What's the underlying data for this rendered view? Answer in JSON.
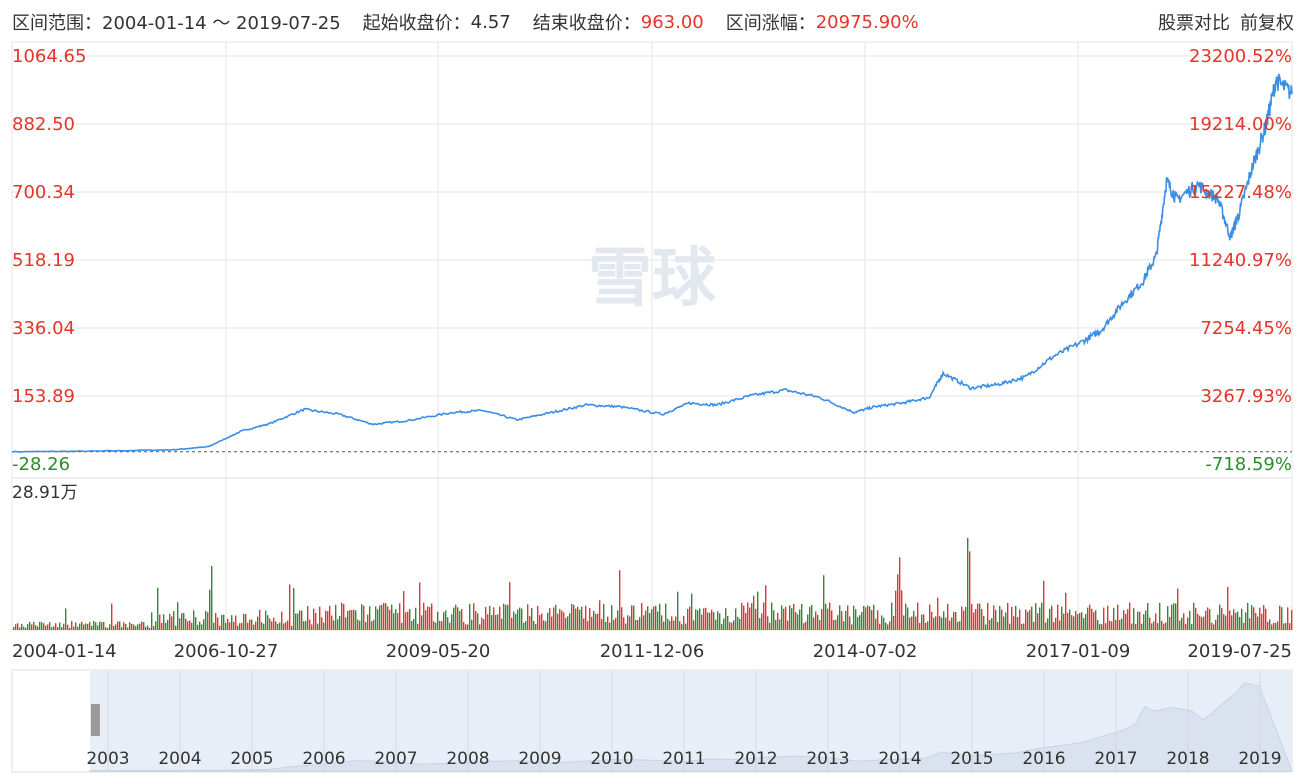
{
  "header": {
    "range_label": "区间范围：",
    "range_value": "2004-01-14 ～ 2019-07-25",
    "start_label": "起始收盘价：",
    "start_value": "4.57",
    "end_label": "结束收盘价：",
    "end_value": "963.00",
    "change_label": "区间涨幅：",
    "change_value": "20975.90%",
    "compare_button": "股票对比",
    "adjust_button": "前复权"
  },
  "watermark": "雪球",
  "colors": {
    "line": "#3a8ee6",
    "up": "#e5342a",
    "down": "#2e8b2e",
    "grid": "#e6e6e6"
  },
  "chart_data": [
    {
      "type": "line",
      "title": "",
      "y_left_ticks": [
        "1064.65",
        "882.50",
        "700.34",
        "518.19",
        "336.04",
        "153.89",
        "-28.26"
      ],
      "y_right_ticks": [
        "23200.52%",
        "19214.00%",
        "15227.48%",
        "11240.97%",
        "7254.45%",
        "3267.93%",
        "-718.59%"
      ],
      "ylim": [
        -28.26,
        1064.65
      ],
      "x_ticks": [
        "2004-01-14",
        "2006-10-27",
        "2009-05-20",
        "2011-12-06",
        "2014-07-02",
        "2017-01-09",
        "2019-07-25"
      ],
      "x": [
        "2004-01-14",
        "2005-01-01",
        "2006-01-01",
        "2006-06-01",
        "2006-10-27",
        "2007-03-01",
        "2007-08-01",
        "2008-01-01",
        "2008-06-01",
        "2008-11-01",
        "2009-05-20",
        "2009-10-01",
        "2010-03-01",
        "2010-08-01",
        "2011-01-01",
        "2011-06-01",
        "2011-12-06",
        "2012-04-01",
        "2012-08-01",
        "2013-01-01",
        "2013-06-01",
        "2013-11-01",
        "2014-04-01",
        "2014-07-02",
        "2014-11-01",
        "2015-03-01",
        "2015-05-01",
        "2015-09-01",
        "2016-01-01",
        "2016-05-01",
        "2016-09-01",
        "2017-01-09",
        "2017-04-01",
        "2017-07-01",
        "2017-10-01",
        "2017-12-01",
        "2018-01-15",
        "2018-03-01",
        "2018-06-01",
        "2018-09-01",
        "2018-10-25",
        "2018-12-01",
        "2019-02-01",
        "2019-04-01",
        "2019-05-15",
        "2019-07-25"
      ],
      "y": [
        4.57,
        6,
        10,
        18,
        60,
        80,
        118,
        105,
        78,
        88,
        110,
        115,
        90,
        110,
        130,
        125,
        105,
        135,
        130,
        155,
        170,
        150,
        110,
        125,
        135,
        150,
        215,
        175,
        185,
        205,
        260,
        300,
        330,
        400,
        460,
        530,
        730,
        680,
        720,
        680,
        580,
        640,
        770,
        880,
        1000,
        963
      ]
    },
    {
      "type": "bar",
      "title": "",
      "ylabel": "28.91万",
      "ylim": [
        0,
        28.91
      ],
      "x_range": [
        "2004-01-14",
        "2019-07-25"
      ],
      "peaks": [
        {
          "x": "2006-06-15",
          "value": 15
        },
        {
          "x": "2007-06-01",
          "value": 12
        },
        {
          "x": "2010-02-01",
          "value": 13
        },
        {
          "x": "2012-02-01",
          "value": 9
        },
        {
          "x": "2013-01-15",
          "value": 12
        },
        {
          "x": "2014-10-15",
          "value": 15
        },
        {
          "x": "2015-08-10",
          "value": 28.91
        },
        {
          "x": "2018-10-01",
          "value": 15
        }
      ]
    },
    {
      "type": "area",
      "title": "",
      "x_ticks": [
        "2003",
        "2004",
        "2005",
        "2006",
        "2007",
        "2008",
        "2009",
        "2010",
        "2011",
        "2012",
        "2013",
        "2014",
        "2015",
        "2016",
        "2017",
        "2018",
        "2019"
      ],
      "selected_range": [
        "2004-01-14",
        "2019-07-25"
      ]
    }
  ]
}
